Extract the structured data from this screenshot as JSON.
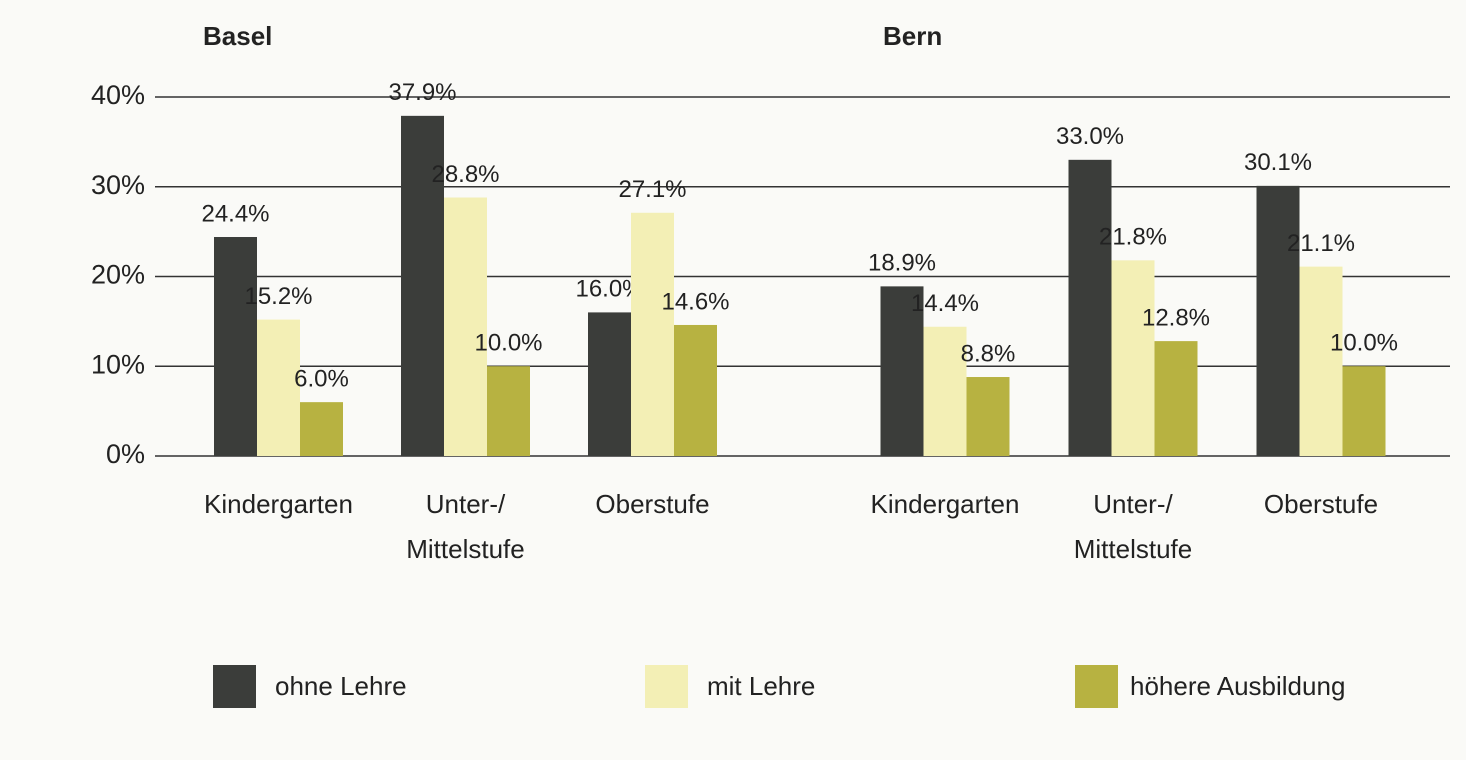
{
  "chart_data": [
    {
      "type": "bar",
      "title": "Basel",
      "categories": [
        "Kindergarten",
        "Unter-/\nMittelstufe",
        "Oberstufe"
      ],
      "series": [
        {
          "name": "ohne Lehre",
          "color": "#3b3d3a",
          "values": [
            24.4,
            37.9,
            16.0
          ],
          "value_labels": [
            "24.4%",
            "37.9%",
            "16.0%"
          ]
        },
        {
          "name": "mit Lehre",
          "color": "#f3efb5",
          "values": [
            15.2,
            28.8,
            27.1
          ],
          "value_labels": [
            "15.2%",
            "28.8%",
            "27.1%"
          ]
        },
        {
          "name": "höhere Ausbildung",
          "color": "#b7b241",
          "values": [
            6.0,
            10.0,
            14.6
          ],
          "value_labels": [
            "6.0%",
            "10.0%",
            "14.6%"
          ]
        }
      ],
      "ylim": [
        0,
        40
      ],
      "yticks": [
        {
          "value": 0,
          "label": "0%"
        },
        {
          "value": 10,
          "label": "10%"
        },
        {
          "value": 20,
          "label": "20%"
        },
        {
          "value": 30,
          "label": "30%"
        },
        {
          "value": 40,
          "label": "40%"
        }
      ],
      "grid": true
    },
    {
      "type": "bar",
      "title": "Bern",
      "categories": [
        "Kindergarten",
        "Unter-/\nMittelstufe",
        "Oberstufe"
      ],
      "series": [
        {
          "color": "#3b3d3a",
          "values": [
            18.9,
            33.0,
            30.1
          ],
          "value_labels": [
            "18.9%",
            "33.0%",
            "30.1%"
          ]
        },
        {
          "color": "#f3efb5",
          "values": [
            14.4,
            21.8,
            21.1
          ],
          "value_labels": [
            "14.4%",
            "21.8%",
            "21.1%"
          ]
        },
        {
          "color": "#b7b241",
          "values": [
            8.8,
            12.8,
            10.0
          ],
          "value_labels": [
            "8.8%",
            "12.8%",
            "10.0%"
          ]
        }
      ],
      "ylim": [
        0,
        40
      ],
      "yticks": [
        0,
        10,
        20,
        30,
        40
      ],
      "grid": true
    }
  ]
}
